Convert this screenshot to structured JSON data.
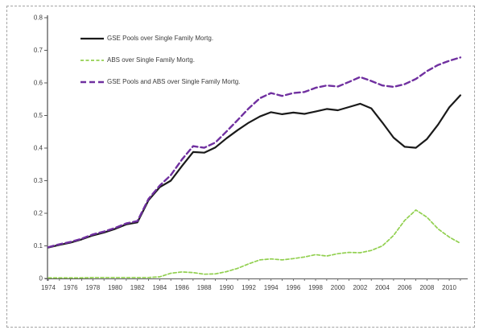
{
  "figure": {
    "background": "#ffffff",
    "border_color": "#a3a3a3",
    "axis_color": "#595959",
    "tick_label_color": "#3f3f3f"
  },
  "chart_data": {
    "type": "line",
    "title": "",
    "xlabel": "",
    "ylabel": "",
    "grid": false,
    "legend_position": "top-left",
    "ylim": [
      0,
      0.8
    ],
    "y_ticks": [
      0,
      0.1,
      0.2,
      0.3,
      0.4,
      0.5,
      0.6,
      0.7,
      0.8
    ],
    "y_tick_labels": [
      "0",
      "0.1",
      "0.2",
      "0.3",
      "0.4",
      "0.5",
      "0.6",
      "0.7",
      "0.8"
    ],
    "x_tick_labels": [
      "1974",
      "1976",
      "1978",
      "1980",
      "1982",
      "1984",
      "1986",
      "1988",
      "1990",
      "1992",
      "1994",
      "1996",
      "1998",
      "2000",
      "2002",
      "2004",
      "2006",
      "2008",
      "2010"
    ],
    "x": [
      1974,
      1975,
      1976,
      1977,
      1978,
      1979,
      1980,
      1981,
      1982,
      1983,
      1984,
      1985,
      1986,
      1987,
      1988,
      1989,
      1990,
      1991,
      1992,
      1993,
      1994,
      1995,
      1996,
      1997,
      1998,
      1999,
      2000,
      2001,
      2002,
      2003,
      2004,
      2005,
      2006,
      2007,
      2008,
      2009,
      2010,
      2011
    ],
    "series": [
      {
        "name": "GSE Pools over Single Family Mortg.",
        "color": "#1a1a1a",
        "dash": "",
        "width": 2.2,
        "values": [
          0.095,
          0.103,
          0.11,
          0.12,
          0.132,
          0.141,
          0.152,
          0.166,
          0.172,
          0.24,
          0.28,
          0.3,
          0.345,
          0.388,
          0.386,
          0.402,
          0.43,
          0.455,
          0.478,
          0.497,
          0.51,
          0.504,
          0.509,
          0.505,
          0.512,
          0.52,
          0.516,
          0.526,
          0.536,
          0.522,
          0.478,
          0.432,
          0.404,
          0.401,
          0.428,
          0.472,
          0.525,
          0.562
        ]
      },
      {
        "name": "ABS over Single Family Mortg.",
        "color": "#92d050",
        "dash": "4 2.5",
        "width": 1.7,
        "values": [
          0.002,
          0.002,
          0.002,
          0.002,
          0.003,
          0.003,
          0.003,
          0.003,
          0.003,
          0.003,
          0.005,
          0.016,
          0.02,
          0.018,
          0.013,
          0.014,
          0.021,
          0.031,
          0.045,
          0.057,
          0.06,
          0.057,
          0.061,
          0.066,
          0.073,
          0.069,
          0.076,
          0.08,
          0.079,
          0.086,
          0.1,
          0.132,
          0.178,
          0.21,
          0.188,
          0.152,
          0.127,
          0.108
        ]
      },
      {
        "name": "GSE Pools and ABS over Single Family Mortg.",
        "color": "#7030a0",
        "dash": "7 4",
        "width": 2.4,
        "values": [
          0.096,
          0.105,
          0.112,
          0.122,
          0.135,
          0.144,
          0.155,
          0.169,
          0.176,
          0.244,
          0.285,
          0.317,
          0.365,
          0.406,
          0.401,
          0.417,
          0.451,
          0.486,
          0.522,
          0.553,
          0.569,
          0.56,
          0.569,
          0.572,
          0.585,
          0.592,
          0.589,
          0.603,
          0.618,
          0.606,
          0.592,
          0.588,
          0.596,
          0.612,
          0.636,
          0.655,
          0.668,
          0.678
        ]
      }
    ]
  }
}
